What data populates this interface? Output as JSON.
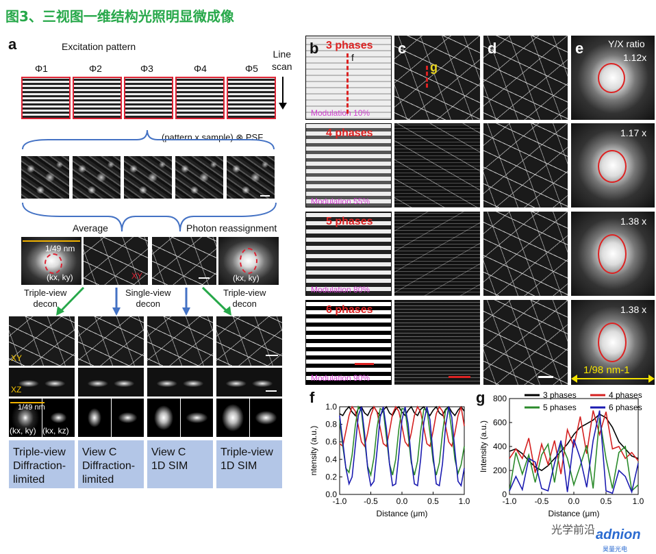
{
  "header": {
    "title": "图3、三视图一维结构光照明显微成像"
  },
  "panel_a": {
    "label": "a",
    "excitation_pattern": "Excitation pattern",
    "phases": [
      "Φ1",
      "Φ2",
      "Φ3",
      "Φ4",
      "Φ5"
    ],
    "line_scan": "Line\nscan",
    "convolution": "(pattern x sample) ⊗ PSF",
    "average": "Average",
    "photon_reassignment": "Photon reassignment",
    "fft_left_scale": "1/49 nm",
    "fft_left_axes": "(kx, ky)",
    "fft_right_axes": "(kx, ky)",
    "xy_tag": "XY",
    "triple_view_decon_left": "Triple-view\ndecon",
    "single_view_decon": "Single-view\ndecon",
    "triple_view_decon_right": "Triple-view\ndecon",
    "row_xy": "XY",
    "row_xz": "XZ",
    "bottom_scale": "1/49 nm",
    "bottom_axes_1": "(kx, ky)",
    "bottom_axes_2": "(kx, kz)",
    "captions": [
      "Triple-view\nDiffraction-\nlimited",
      "View C\nDiffraction-\nlimited",
      "View C\n1D SIM",
      "Triple-view\n1D SIM"
    ]
  },
  "panel_b": {
    "label": "b",
    "rows": [
      {
        "phases": "3 phases",
        "modulation": "Modulation 10%"
      },
      {
        "phases": "4 phases",
        "modulation": "Modulation 55%"
      },
      {
        "phases": "5 phases",
        "modulation": "Modulation 80%"
      },
      {
        "phases": "6 phases",
        "modulation": "Modulation 90%"
      }
    ],
    "marker_f": "f"
  },
  "panel_c": {
    "label": "c",
    "marker_g": "g"
  },
  "panel_d": {
    "label": "d"
  },
  "panel_e": {
    "label": "e",
    "ratio_title": "Y/X ratio",
    "ratios": [
      "1.12x",
      "1.17 x",
      "1.38 x",
      "1.38 x"
    ],
    "scale": "1/98 nm-1"
  },
  "panel_f": {
    "label": "f"
  },
  "panel_g": {
    "label": "g"
  },
  "watermark": {
    "text": "光学前沿",
    "brand": "adnion",
    "brand_sub": "昊量光电"
  },
  "colors": {
    "phase3": "#000000",
    "phase4": "#d42020",
    "phase5": "#2a8a2a",
    "phase6": "#1a1ab0",
    "title_green": "#27a84a"
  },
  "chart_data": [
    {
      "type": "line",
      "panel": "f",
      "xlabel": "Distance (μm)",
      "ylabel": "ntensity (a.u.)",
      "xlim": [
        -1.0,
        1.0
      ],
      "ylim": [
        0.0,
        1.0
      ],
      "xticks": [
        "-1.0",
        "-0.5",
        "0.0",
        "0.5",
        "1.0"
      ],
      "yticks": [
        "0.0",
        "0.2",
        "0.4",
        "0.6",
        "0.8",
        "1.0"
      ],
      "x": [
        -1.0,
        -0.95,
        -0.9,
        -0.85,
        -0.8,
        -0.75,
        -0.7,
        -0.65,
        -0.6,
        -0.55,
        -0.5,
        -0.45,
        -0.4,
        -0.35,
        -0.3,
        -0.25,
        -0.2,
        -0.15,
        -0.1,
        -0.05,
        0.0,
        0.05,
        0.1,
        0.15,
        0.2,
        0.25,
        0.3,
        0.35,
        0.4,
        0.45,
        0.5,
        0.55,
        0.6,
        0.65,
        0.7,
        0.75,
        0.8,
        0.85,
        0.9,
        0.95,
        1.0
      ],
      "series": [
        {
          "color": "#000000",
          "values": [
            0.92,
            0.9,
            0.96,
            1.0,
            0.94,
            0.9,
            0.98,
            1.0,
            0.93,
            0.9,
            0.97,
            1.0,
            0.94,
            0.9,
            0.96,
            1.0,
            0.93,
            0.9,
            0.97,
            1.0,
            0.94,
            0.9,
            0.96,
            1.0,
            0.93,
            0.9,
            0.97,
            1.0,
            0.94,
            0.9,
            0.96,
            1.0,
            0.93,
            0.9,
            0.97,
            1.0,
            0.94,
            0.9,
            0.96,
            1.0,
            0.95
          ]
        },
        {
          "color": "#d42020",
          "values": [
            0.58,
            0.55,
            0.72,
            0.9,
            1.0,
            0.95,
            0.78,
            0.6,
            0.55,
            0.7,
            0.9,
            1.0,
            0.94,
            0.76,
            0.58,
            0.55,
            0.72,
            0.92,
            1.0,
            0.95,
            0.78,
            0.6,
            0.55,
            0.7,
            0.9,
            1.0,
            0.94,
            0.76,
            0.58,
            0.55,
            0.72,
            0.92,
            1.0,
            0.95,
            0.78,
            0.6,
            0.55,
            0.7,
            0.9,
            1.0,
            0.78
          ]
        },
        {
          "color": "#2a8a2a",
          "values": [
            0.85,
            0.55,
            0.3,
            0.25,
            0.45,
            0.78,
            1.0,
            0.95,
            0.62,
            0.32,
            0.22,
            0.42,
            0.76,
            0.98,
            0.96,
            0.65,
            0.35,
            0.22,
            0.4,
            0.74,
            0.98,
            0.97,
            0.68,
            0.36,
            0.22,
            0.38,
            0.72,
            0.97,
            0.98,
            0.7,
            0.38,
            0.22,
            0.36,
            0.7,
            0.96,
            0.99,
            0.72,
            0.4,
            0.24,
            0.34,
            0.55
          ]
        },
        {
          "color": "#1a1ab0",
          "values": [
            0.9,
            0.6,
            0.3,
            0.12,
            0.2,
            0.55,
            0.9,
            1.0,
            0.7,
            0.3,
            0.1,
            0.15,
            0.5,
            0.88,
            1.0,
            0.75,
            0.35,
            0.1,
            0.12,
            0.45,
            0.85,
            1.0,
            0.8,
            0.4,
            0.12,
            0.1,
            0.4,
            0.82,
            1.0,
            0.85,
            0.45,
            0.12,
            0.1,
            0.35,
            0.78,
            1.0,
            0.88,
            0.5,
            0.15,
            0.1,
            0.3
          ]
        }
      ]
    },
    {
      "type": "line",
      "panel": "g",
      "xlabel": "Distance (μm)",
      "ylabel": "Intensity (a.u.)",
      "xlim": [
        -1.0,
        1.0
      ],
      "ylim": [
        0,
        800
      ],
      "xticks": [
        "-1.0",
        "-0.5",
        "0.0",
        "0.5",
        "1.0"
      ],
      "yticks": [
        "0",
        "200",
        "400",
        "600",
        "800"
      ],
      "x": [
        -1.0,
        -0.9,
        -0.8,
        -0.7,
        -0.6,
        -0.5,
        -0.4,
        -0.3,
        -0.2,
        -0.1,
        0.0,
        0.1,
        0.2,
        0.3,
        0.4,
        0.5,
        0.6,
        0.7,
        0.8,
        0.9,
        1.0
      ],
      "series": [
        {
          "name": "3 phases",
          "color": "#000000",
          "values": [
            360,
            380,
            340,
            280,
            230,
            200,
            240,
            300,
            360,
            420,
            500,
            560,
            590,
            620,
            670,
            640,
            560,
            440,
            380,
            320,
            300
          ]
        },
        {
          "name": "4 phases",
          "color": "#d42020",
          "values": [
            300,
            380,
            300,
            470,
            180,
            420,
            250,
            450,
            170,
            540,
            400,
            650,
            340,
            700,
            500,
            690,
            380,
            400,
            300,
            350,
            280
          ]
        },
        {
          "name": "5 phases",
          "color": "#2a8a2a",
          "values": [
            30,
            350,
            170,
            330,
            100,
            330,
            420,
            100,
            430,
            300,
            80,
            240,
            410,
            50,
            640,
            300,
            50,
            350,
            400,
            30,
            80
          ]
        },
        {
          "name": "6 phases",
          "color": "#1a1ab0",
          "values": [
            30,
            150,
            40,
            300,
            270,
            50,
            30,
            260,
            450,
            20,
            460,
            300,
            60,
            450,
            700,
            30,
            10,
            200,
            150,
            20,
            260
          ]
        }
      ]
    }
  ]
}
